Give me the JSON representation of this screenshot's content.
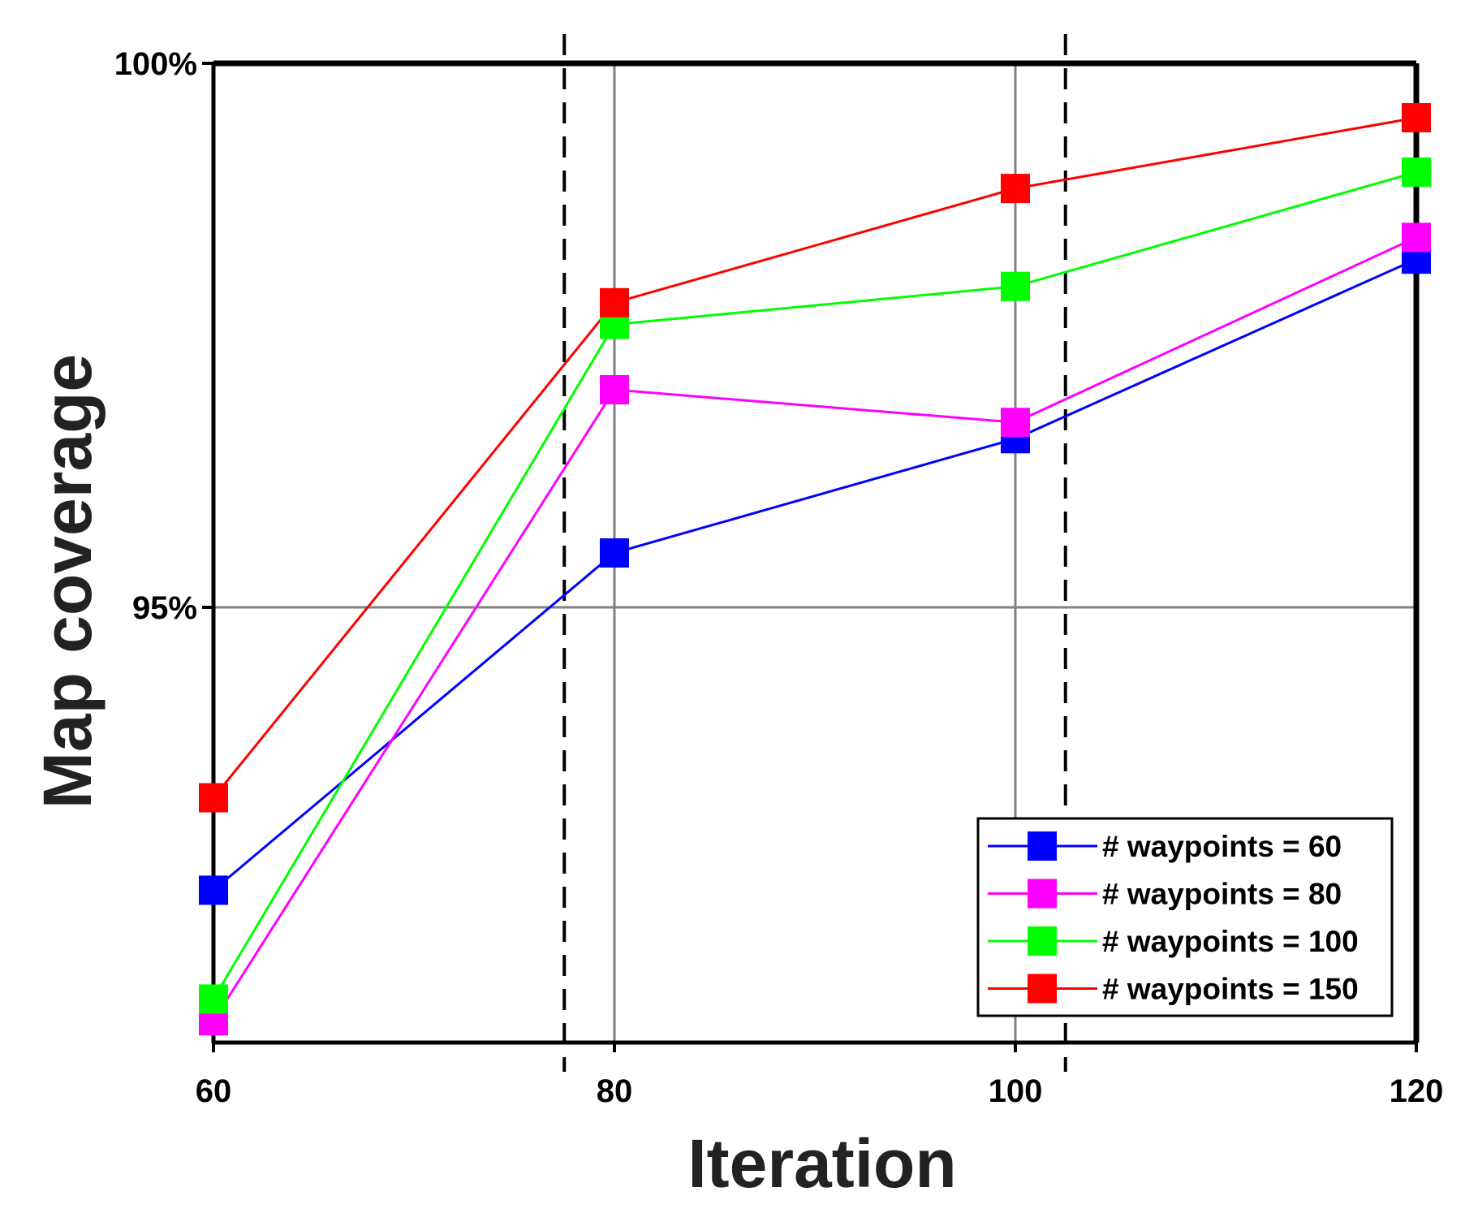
{
  "chart_data": {
    "type": "line",
    "title": "",
    "xlabel": "Iteration",
    "ylabel": "Map coverage",
    "x": [
      60,
      80,
      100,
      120
    ],
    "xlim": [
      60,
      120
    ],
    "ylim": [
      91.0,
      100.0
    ],
    "x_tick_labels": [
      "60",
      "80",
      "100",
      "120"
    ],
    "y_ticks": [
      {
        "value": 95,
        "label": "95%"
      },
      {
        "value": 100,
        "label": "100%"
      }
    ],
    "grid": true,
    "vertical_dashed_lines_x": [
      77.5,
      102.5
    ],
    "legend_position": "bottom-right",
    "marker": "square",
    "series": [
      {
        "name": "# waypoints = 60",
        "color": "#0000ff",
        "values": [
          92.4,
          95.5,
          96.55,
          98.2
        ]
      },
      {
        "name": "# waypoints = 80",
        "color": "#ff00ff",
        "values": [
          91.2,
          97.0,
          96.7,
          98.4
        ]
      },
      {
        "name": "# waypoints = 100",
        "color": "#00ff00",
        "values": [
          91.4,
          97.6,
          97.95,
          99.0
        ]
      },
      {
        "name": "# waypoints = 150",
        "color": "#ff0000",
        "values": [
          93.25,
          97.8,
          98.85,
          99.5
        ]
      }
    ]
  }
}
